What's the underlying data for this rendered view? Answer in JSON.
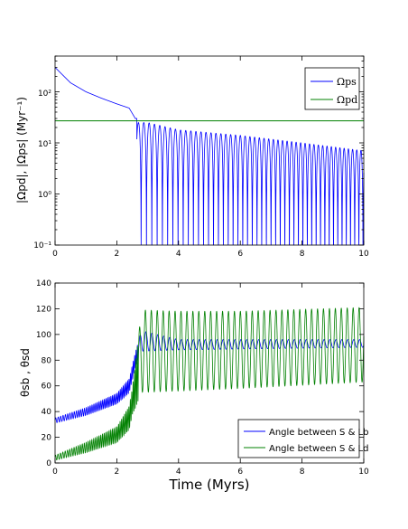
{
  "chart_data": [
    {
      "type": "line",
      "yscale": "log",
      "xlim": [
        0,
        10
      ],
      "ylim": [
        0.1,
        500
      ],
      "xticks": [
        "0",
        "2",
        "4",
        "6",
        "8",
        "10"
      ],
      "yticks": [
        "10⁻¹",
        "10⁰",
        "10¹",
        "10²"
      ],
      "ylabel": "|Ωpd|, |Ωps| (Myr⁻¹)",
      "legend": {
        "placement": "top-right"
      },
      "series": [
        {
          "name": "Ωps",
          "color": "#0000ff",
          "description_points": [
            [
              0,
              300
            ],
            [
              0.5,
              150
            ],
            [
              1,
              100
            ],
            [
              1.5,
              75
            ],
            [
              2,
              58
            ],
            [
              2.4,
              48
            ],
            [
              2.6,
              30
            ],
            [
              2.7,
              1.3
            ],
            [
              3,
              25
            ],
            [
              4,
              18
            ],
            [
              6,
              14
            ],
            [
              8,
              10
            ],
            [
              10,
              7
            ]
          ],
          "minima_floor": 0.1
        },
        {
          "name": "Ωpd",
          "color": "#008000",
          "constant": 27
        }
      ]
    },
    {
      "type": "line",
      "xlim": [
        0,
        10
      ],
      "ylim": [
        0,
        140
      ],
      "xticks": [
        "0",
        "2",
        "4",
        "6",
        "8",
        "10"
      ],
      "yticks": [
        "0",
        "20",
        "40",
        "60",
        "80",
        "100",
        "120",
        "140"
      ],
      "xlabel": "Time (Myrs)",
      "ylabel": "θsb , θsd",
      "legend": {
        "placement": "bottom-right"
      },
      "series": [
        {
          "name": "Angle between S & Lb",
          "color": "#0000ff",
          "mean_points": [
            [
              0,
              33
            ],
            [
              1,
              40
            ],
            [
              2,
              50
            ],
            [
              2.4,
              60
            ],
            [
              2.6,
              80
            ],
            [
              2.8,
              95
            ],
            [
              4,
              92
            ],
            [
              10,
              93
            ]
          ],
          "amplitude_points": [
            [
              0,
              2
            ],
            [
              2,
              4
            ],
            [
              2.6,
              6
            ],
            [
              2.8,
              8
            ],
            [
              4,
              4
            ],
            [
              10,
              3
            ]
          ]
        },
        {
          "name": "Angle between S & Ld",
          "color": "#008000",
          "mean_points": [
            [
              0,
              4
            ],
            [
              1,
              12
            ],
            [
              2,
              22
            ],
            [
              2.4,
              35
            ],
            [
              2.6,
              60
            ],
            [
              2.8,
              87
            ],
            [
              4,
              87
            ],
            [
              6,
              88
            ],
            [
              10,
              92
            ]
          ],
          "amplitude_points": [
            [
              0,
              2
            ],
            [
              2,
              6
            ],
            [
              2.5,
              10
            ],
            [
              2.8,
              32
            ],
            [
              4,
              31
            ],
            [
              6,
              30
            ],
            [
              10,
              29
            ]
          ]
        }
      ]
    }
  ]
}
